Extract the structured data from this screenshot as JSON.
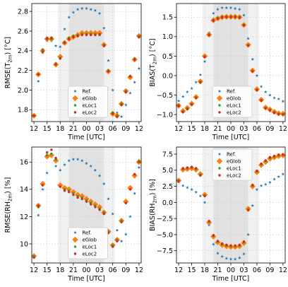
{
  "chart_data": [
    {
      "type": "scatter",
      "ylabel": "RMSE(T",
      "ylabel_sub": "2m",
      "ylabel_unit": ") [°C]",
      "xlabel": "Time [UTC]",
      "xticks": [
        "12",
        "15",
        "18",
        "21",
        "00",
        "03",
        "06",
        "09",
        "12"
      ],
      "ylim": [
        1.68,
        2.88
      ],
      "yticks": [
        1.8,
        2.0,
        2.2,
        2.4,
        2.6,
        2.8
      ],
      "ytick_labels": [
        "1.8",
        "2.0",
        "2.2",
        "2.4",
        "2.6",
        "2.8"
      ],
      "legend_position": "lower-center",
      "night_shading": [
        20,
        28
      ],
      "twilight_shading": [
        [
          17.5,
          20
        ],
        [
          28,
          30.5
        ]
      ],
      "series": [
        {
          "name": "Ref.",
          "marker": "star",
          "color": "#1f77b4",
          "x": [
            13,
            14,
            15,
            16,
            17,
            18,
            19,
            20,
            21,
            22,
            23,
            24,
            25,
            26,
            27,
            28,
            29,
            30,
            31,
            32,
            33,
            34,
            35,
            36
          ],
          "y": [
            2.09,
            2.38,
            2.5,
            2.5,
            2.45,
            2.44,
            2.62,
            2.74,
            2.79,
            2.82,
            2.83,
            2.83,
            2.82,
            2.81,
            2.78,
            2.63,
            2.3,
            2.0,
            1.77,
            1.73,
            1.85,
            1.97,
            2.08,
            2.22
          ]
        },
        {
          "name": "eGlob",
          "marker": "diamond",
          "color": "#ff7f0e",
          "x": [
            12,
            13,
            14,
            15,
            16,
            17,
            18,
            19,
            20,
            21,
            22,
            23,
            24,
            25,
            26,
            27,
            28,
            29,
            30,
            31,
            32,
            33,
            34,
            35,
            36
          ],
          "y": [
            1.74,
            2.16,
            2.4,
            2.52,
            2.52,
            2.26,
            2.34,
            2.48,
            2.52,
            2.54,
            2.56,
            2.58,
            2.58,
            2.58,
            2.58,
            2.58,
            2.46,
            2.19,
            1.76,
            1.74,
            1.86,
            1.99,
            2.13,
            2.31,
            2.55
          ]
        },
        {
          "name": "eLoc1",
          "marker": "dot",
          "color": "#2ca02c",
          "x": [
            12,
            13,
            14,
            15,
            16,
            17,
            18,
            19,
            20,
            21,
            22,
            23,
            24,
            25,
            26,
            27,
            28,
            29,
            30,
            31,
            32,
            33,
            34,
            35,
            36
          ],
          "y": [
            1.74,
            2.16,
            2.41,
            2.53,
            2.52,
            2.27,
            2.33,
            2.49,
            2.53,
            2.55,
            2.56,
            2.57,
            2.57,
            2.57,
            2.57,
            2.56,
            2.46,
            2.2,
            1.77,
            1.74,
            1.86,
            1.99,
            2.14,
            2.32,
            2.55
          ]
        },
        {
          "name": "eLoc2",
          "marker": "dot",
          "color": "#d62728",
          "x": [
            12,
            13,
            14,
            15,
            16,
            17,
            18,
            19,
            20,
            21,
            22,
            23,
            24,
            25,
            26,
            27,
            28,
            29,
            30,
            31,
            32,
            33,
            34,
            35,
            36
          ],
          "y": [
            1.74,
            2.16,
            2.39,
            2.52,
            2.53,
            2.26,
            2.32,
            2.48,
            2.52,
            2.54,
            2.55,
            2.56,
            2.56,
            2.56,
            2.56,
            2.57,
            2.45,
            2.19,
            1.76,
            1.73,
            1.85,
            1.98,
            2.14,
            2.31,
            2.54
          ]
        }
      ]
    },
    {
      "type": "scatter",
      "ylabel": "BIAS(T",
      "ylabel_sub": "2m",
      "ylabel_unit": ") [°C]",
      "xlabel": "Time [UTC]",
      "xticks": [
        "12",
        "15",
        "18",
        "21",
        "00",
        "03",
        "06",
        "09",
        "12"
      ],
      "ylim": [
        -1.18,
        1.85
      ],
      "yticks": [
        -1.0,
        -0.5,
        0.0,
        0.5,
        1.0,
        1.5
      ],
      "ytick_labels": [
        "−1.0",
        "−0.5",
        "0.0",
        "0.5",
        "1.0",
        "1.5"
      ],
      "legend_position": "lower-center",
      "night_shading": [
        20,
        28
      ],
      "twilight_shading": [
        [
          17.5,
          20
        ],
        [
          28,
          30.5
        ]
      ],
      "series": [
        {
          "name": "Ref.",
          "marker": "star",
          "color": "#1f77b4",
          "x": [
            12,
            13,
            14,
            15,
            16,
            17,
            18,
            19,
            20,
            21,
            22,
            23,
            24,
            25,
            26,
            27,
            28,
            29,
            30,
            31,
            32,
            33,
            34,
            35,
            36
          ],
          "y": [
            -0.65,
            -0.54,
            -0.42,
            -0.33,
            -0.17,
            0.02,
            0.36,
            1.1,
            1.6,
            1.7,
            1.74,
            1.74,
            1.74,
            1.72,
            1.7,
            1.55,
            0.95,
            0.42,
            0.0,
            -0.28,
            -0.42,
            -0.5,
            -0.57,
            -0.6,
            -0.66
          ]
        },
        {
          "name": "eGlob",
          "marker": "diamond",
          "color": "#ff7f0e",
          "x": [
            12,
            13,
            14,
            15,
            16,
            17,
            18,
            19,
            20,
            21,
            22,
            23,
            24,
            25,
            26,
            27,
            28,
            29,
            30,
            31,
            32,
            33,
            34,
            35,
            36
          ],
          "y": [
            -0.77,
            -0.91,
            -0.83,
            -0.72,
            -0.55,
            -0.15,
            0.5,
            1.05,
            1.42,
            1.47,
            1.5,
            1.51,
            1.51,
            1.51,
            1.5,
            1.3,
            0.79,
            0.13,
            -0.35,
            -0.62,
            -0.82,
            -0.87,
            -0.93,
            -0.97,
            -0.98
          ]
        },
        {
          "name": "eLoc1",
          "marker": "dot",
          "color": "#2ca02c",
          "x": [
            12,
            13,
            14,
            15,
            16,
            17,
            18,
            19,
            20,
            21,
            22,
            23,
            24,
            25,
            26,
            27,
            28,
            29,
            30,
            31,
            32,
            33,
            34,
            35,
            36
          ],
          "y": [
            -0.76,
            -0.92,
            -0.84,
            -0.73,
            -0.56,
            -0.16,
            0.49,
            1.06,
            1.43,
            1.48,
            1.51,
            1.52,
            1.52,
            1.52,
            1.51,
            1.31,
            0.78,
            0.12,
            -0.36,
            -0.63,
            -0.83,
            -0.88,
            -0.94,
            -0.98,
            -0.99
          ]
        },
        {
          "name": "eLoc2",
          "marker": "dot",
          "color": "#d62728",
          "x": [
            12,
            13,
            14,
            15,
            16,
            17,
            18,
            19,
            20,
            21,
            22,
            23,
            24,
            25,
            26,
            27,
            28,
            29,
            30,
            31,
            32,
            33,
            34,
            35,
            36
          ],
          "y": [
            -0.78,
            -0.93,
            -0.86,
            -0.74,
            -0.57,
            -0.17,
            0.48,
            1.04,
            1.41,
            1.46,
            1.49,
            1.5,
            1.5,
            1.5,
            1.49,
            1.29,
            0.77,
            0.11,
            -0.37,
            -0.64,
            -0.84,
            -0.89,
            -0.95,
            -0.99,
            -1.0
          ]
        }
      ]
    },
    {
      "type": "scatter",
      "ylabel": "RMSE(RH",
      "ylabel_sub": "2m",
      "ylabel_unit": ") [%]",
      "xlabel": "Time [UTC]",
      "xticks": [
        "12",
        "15",
        "18",
        "21",
        "00",
        "03",
        "06",
        "09",
        "12"
      ],
      "ylim": [
        8.6,
        17.1
      ],
      "yticks": [
        10,
        12,
        14,
        16
      ],
      "ytick_labels": [
        "10",
        "12",
        "14",
        "16"
      ],
      "legend_position": "lower-center",
      "night_shading": [
        20,
        28
      ],
      "twilight_shading": [
        [
          17.5,
          20
        ],
        [
          28,
          30.5
        ]
      ],
      "series": [
        {
          "name": "Ref.",
          "marker": "star",
          "color": "#1f77b4",
          "x": [
            13,
            14,
            15,
            16,
            17,
            18,
            19,
            20,
            21,
            22,
            23,
            24,
            25,
            26,
            27,
            28,
            29,
            30,
            31,
            32,
            33,
            34,
            35,
            36
          ],
          "y": [
            12.1,
            14.0,
            15.2,
            16.4,
            15.7,
            15.4,
            15.8,
            16.1,
            16.2,
            16.2,
            16.1,
            15.9,
            15.7,
            15.4,
            15.0,
            14.4,
            13.3,
            12.2,
            11.0,
            10.2,
            10.7,
            12.0,
            13.7,
            15.6
          ]
        },
        {
          "name": "eGlob",
          "marker": "diamond",
          "color": "#ff7f0e",
          "x": [
            12,
            13,
            14,
            15,
            16,
            17,
            18,
            19,
            20,
            21,
            22,
            23,
            24,
            25,
            26,
            27,
            28,
            29,
            30,
            31,
            32,
            33,
            34,
            35,
            36
          ],
          "y": [
            9.1,
            12.8,
            14.4,
            16.4,
            16.5,
            16.1,
            14.3,
            14.1,
            14.0,
            13.8,
            13.6,
            13.5,
            13.3,
            13.1,
            12.9,
            12.7,
            12.3,
            10.9,
            9.9,
            10.3,
            11.7,
            13.1,
            14.1,
            15.0,
            16.0
          ]
        },
        {
          "name": "eLoc1",
          "marker": "dot",
          "color": "#2ca02c",
          "x": [
            12,
            13,
            14,
            15,
            16,
            17,
            18,
            19,
            20,
            21,
            22,
            23,
            24,
            25,
            26,
            27,
            28,
            29,
            30,
            31,
            32,
            33,
            34,
            35,
            36
          ],
          "y": [
            9.1,
            12.7,
            14.3,
            16.5,
            16.6,
            16.2,
            14.2,
            14.0,
            13.9,
            13.7,
            13.5,
            13.4,
            13.2,
            13.0,
            12.8,
            12.6,
            12.3,
            10.9,
            9.9,
            10.3,
            11.7,
            13.0,
            14.0,
            15.1,
            16.1
          ]
        },
        {
          "name": "eLoc2",
          "marker": "dot",
          "color": "#d62728",
          "x": [
            12,
            13,
            14,
            15,
            16,
            17,
            18,
            19,
            20,
            21,
            22,
            23,
            24,
            25,
            26,
            27,
            28,
            29,
            30,
            31,
            32,
            33,
            34,
            35,
            36
          ],
          "y": [
            9.0,
            12.8,
            14.3,
            16.7,
            16.9,
            16.3,
            14.2,
            13.9,
            13.8,
            13.6,
            13.4,
            13.3,
            13.1,
            12.9,
            12.7,
            12.5,
            12.2,
            10.8,
            9.8,
            10.2,
            11.6,
            13.0,
            14.0,
            15.1,
            16.0
          ]
        }
      ]
    },
    {
      "type": "scatter",
      "ylabel": "BIAS(RH",
      "ylabel_sub": "2m",
      "ylabel_unit": ") [%]",
      "xlabel": "Time [UTC]",
      "xticks": [
        "12",
        "15",
        "18",
        "21",
        "00",
        "03",
        "06",
        "09",
        "12"
      ],
      "ylim": [
        -9.4,
        8.6
      ],
      "yticks": [
        -7.5,
        -5.0,
        -2.5,
        0.0,
        2.5,
        5.0,
        7.5
      ],
      "ytick_labels": [
        "−7.5",
        "−5.0",
        "−2.5",
        "0.0",
        "2.5",
        "5.0",
        "7.5"
      ],
      "legend_position": "upper-center",
      "night_shading": [
        20,
        28
      ],
      "twilight_shading": [
        [
          17.5,
          20
        ],
        [
          28,
          30.5
        ]
      ],
      "series": [
        {
          "name": "Ref.",
          "marker": "star",
          "color": "#1f77b4",
          "x": [
            12,
            13,
            14,
            15,
            16,
            17,
            18,
            19,
            20,
            21,
            22,
            23,
            24,
            25,
            26,
            27,
            28,
            29,
            30,
            31,
            32,
            33,
            34,
            35,
            36
          ],
          "y": [
            3.2,
            2.6,
            2.3,
            2.0,
            1.6,
            1.0,
            0.0,
            -3.5,
            -6.5,
            -7.9,
            -8.4,
            -8.7,
            -8.8,
            -8.8,
            -8.6,
            -8.0,
            -5.0,
            -0.5,
            2.0,
            2.6,
            2.8,
            3.1,
            3.6,
            4.0,
            4.4
          ]
        },
        {
          "name": "eGlob",
          "marker": "diamond",
          "color": "#ff7f0e",
          "x": [
            12,
            13,
            14,
            15,
            16,
            17,
            18,
            19,
            20,
            21,
            22,
            23,
            24,
            25,
            26,
            27,
            28,
            29,
            30,
            31,
            32,
            33,
            34,
            35,
            36
          ],
          "y": [
            3.4,
            5.1,
            5.2,
            5.3,
            5.1,
            4.4,
            1.2,
            -3.1,
            -5.3,
            -6.2,
            -6.6,
            -6.8,
            -6.9,
            -6.9,
            -6.8,
            -6.3,
            -1.0,
            2.5,
            4.7,
            5.8,
            6.3,
            6.8,
            7.0,
            7.2,
            7.3
          ]
        },
        {
          "name": "eLoc1",
          "marker": "dot",
          "color": "#2ca02c",
          "x": [
            12,
            13,
            14,
            15,
            16,
            17,
            18,
            19,
            20,
            21,
            22,
            23,
            24,
            25,
            26,
            27,
            28,
            29,
            30,
            31,
            32,
            33,
            34,
            35,
            36
          ],
          "y": [
            3.4,
            5.2,
            5.3,
            5.4,
            5.2,
            4.3,
            1.1,
            -3.0,
            -5.2,
            -6.1,
            -6.5,
            -6.7,
            -6.8,
            -6.8,
            -6.7,
            -6.2,
            -1.1,
            2.6,
            4.8,
            5.9,
            6.4,
            6.9,
            7.1,
            7.3,
            7.4
          ]
        },
        {
          "name": "eLoc2",
          "marker": "dot",
          "color": "#d62728",
          "x": [
            12,
            13,
            14,
            15,
            16,
            17,
            18,
            19,
            20,
            21,
            22,
            23,
            24,
            25,
            26,
            27,
            28,
            29,
            30,
            31,
            32,
            33,
            34,
            35,
            36
          ],
          "y": [
            3.3,
            5.3,
            5.4,
            5.5,
            5.3,
            4.2,
            1.0,
            -2.9,
            -5.1,
            -6.0,
            -6.4,
            -6.6,
            -6.7,
            -6.7,
            -6.6,
            -6.1,
            -1.2,
            2.7,
            4.9,
            6.0,
            6.5,
            7.0,
            7.2,
            7.4,
            7.4
          ]
        }
      ]
    }
  ]
}
